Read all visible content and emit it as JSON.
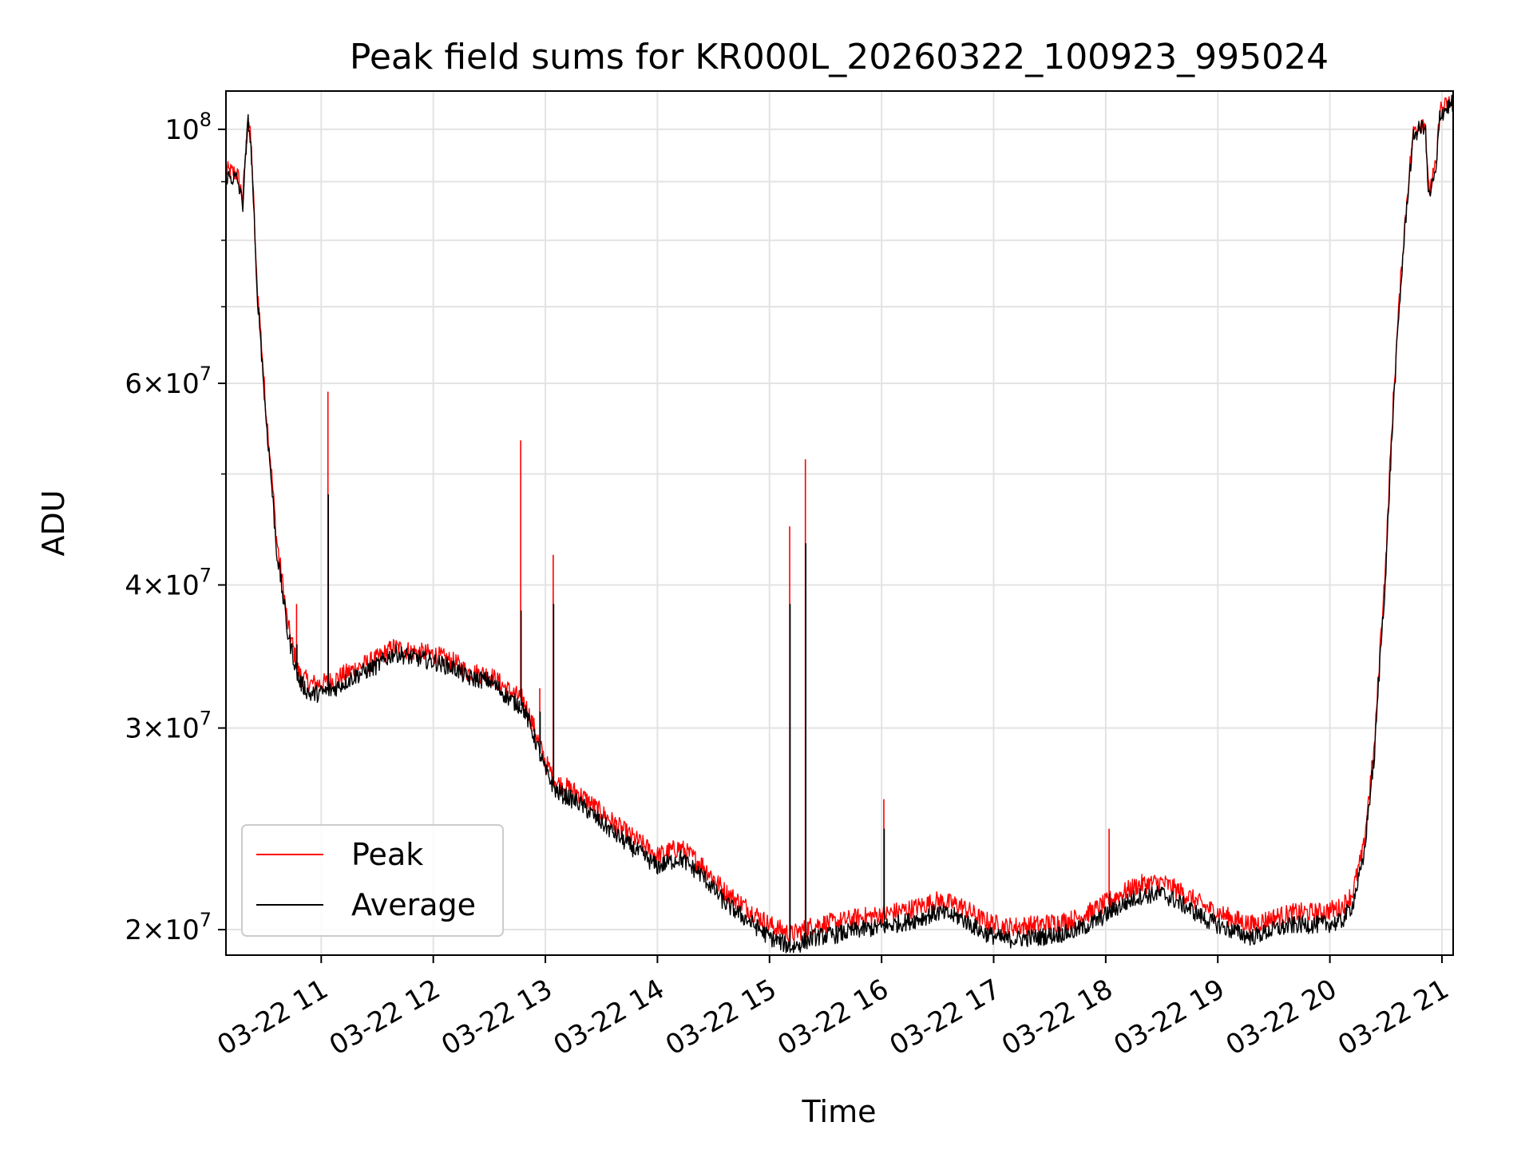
{
  "chart_data": {
    "type": "line",
    "title": "Peak field sums for KR000L_20260322_100923_995024",
    "xlabel": "Time",
    "ylabel": "ADU",
    "yscale": "log",
    "xlim": [
      10.15,
      21.1
    ],
    "ylim": [
      19000000,
      108000000
    ],
    "grid": true,
    "legend_position": "lower-left",
    "x_ticks": [
      {
        "value": 11,
        "label": "03-22 11"
      },
      {
        "value": 12,
        "label": "03-22 12"
      },
      {
        "value": 13,
        "label": "03-22 13"
      },
      {
        "value": 14,
        "label": "03-22 14"
      },
      {
        "value": 15,
        "label": "03-22 15"
      },
      {
        "value": 16,
        "label": "03-22 16"
      },
      {
        "value": 17,
        "label": "03-22 17"
      },
      {
        "value": 18,
        "label": "03-22 18"
      },
      {
        "value": 19,
        "label": "03-22 19"
      },
      {
        "value": 20,
        "label": "03-22 20"
      },
      {
        "value": 21,
        "label": "03-22 21"
      }
    ],
    "y_ticks": [
      {
        "value": 20000000,
        "mant": "2",
        "exp": "7"
      },
      {
        "value": 30000000,
        "mant": "3",
        "exp": "7"
      },
      {
        "value": 40000000,
        "mant": "4",
        "exp": "7"
      },
      {
        "value": 60000000,
        "mant": "6",
        "exp": "7"
      },
      {
        "value": 100000000,
        "mant": "",
        "exp": "8"
      }
    ],
    "y_minor_ticks": [
      50000000,
      70000000,
      80000000,
      90000000
    ],
    "series": [
      {
        "name": "Peak",
        "color": "#ff0000",
        "points": [
          [
            10.15,
            92000000
          ],
          [
            10.25,
            91500000
          ],
          [
            10.3,
            87000000
          ],
          [
            10.35,
            103000000
          ],
          [
            10.38,
            95000000
          ],
          [
            10.42,
            75000000
          ],
          [
            10.5,
            58000000
          ],
          [
            10.6,
            44000000
          ],
          [
            10.7,
            37000000
          ],
          [
            10.8,
            33500000
          ],
          [
            10.9,
            32800000
          ],
          [
            11.0,
            32800000
          ],
          [
            11.1,
            33000000
          ],
          [
            11.3,
            33800000
          ],
          [
            11.5,
            34500000
          ],
          [
            11.65,
            35300000
          ],
          [
            11.8,
            35000000
          ],
          [
            12.0,
            34800000
          ],
          [
            12.2,
            34200000
          ],
          [
            12.3,
            33600000
          ],
          [
            12.5,
            33400000
          ],
          [
            12.7,
            32200000
          ],
          [
            12.8,
            31800000
          ],
          [
            12.9,
            30000000
          ],
          [
            13.0,
            28000000
          ],
          [
            13.1,
            26900000
          ],
          [
            13.3,
            26300000
          ],
          [
            13.5,
            25300000
          ],
          [
            13.7,
            24400000
          ],
          [
            13.9,
            23600000
          ],
          [
            14.0,
            23200000
          ],
          [
            14.1,
            23400000
          ],
          [
            14.2,
            23600000
          ],
          [
            14.4,
            22800000
          ],
          [
            14.6,
            21600000
          ],
          [
            14.8,
            20900000
          ],
          [
            15.0,
            20200000
          ],
          [
            15.2,
            19800000
          ],
          [
            15.4,
            20200000
          ],
          [
            15.6,
            20300000
          ],
          [
            15.8,
            20500000
          ],
          [
            16.0,
            20600000
          ],
          [
            16.3,
            20900000
          ],
          [
            16.5,
            21200000
          ],
          [
            16.7,
            21000000
          ],
          [
            16.9,
            20400000
          ],
          [
            17.1,
            20100000
          ],
          [
            17.4,
            20200000
          ],
          [
            17.7,
            20400000
          ],
          [
            17.9,
            20800000
          ],
          [
            18.1,
            21400000
          ],
          [
            18.3,
            21900000
          ],
          [
            18.5,
            22000000
          ],
          [
            18.7,
            21500000
          ],
          [
            18.9,
            20900000
          ],
          [
            19.1,
            20500000
          ],
          [
            19.3,
            20200000
          ],
          [
            19.5,
            20500000
          ],
          [
            19.7,
            20700000
          ],
          [
            19.9,
            20700000
          ],
          [
            20.1,
            20900000
          ],
          [
            20.2,
            21500000
          ],
          [
            20.3,
            23500000
          ],
          [
            20.4,
            29000000
          ],
          [
            20.5,
            42000000
          ],
          [
            20.6,
            66000000
          ],
          [
            20.7,
            90000000
          ],
          [
            20.75,
            100000000
          ],
          [
            20.85,
            102000000
          ],
          [
            20.88,
            88000000
          ],
          [
            20.95,
            93000000
          ],
          [
            20.98,
            104000000
          ],
          [
            21.05,
            105000000
          ],
          [
            21.1,
            106000000
          ]
        ]
      },
      {
        "name": "Average",
        "color": "#000000",
        "points": [
          [
            10.15,
            91000000
          ],
          [
            10.25,
            90500000
          ],
          [
            10.3,
            86000000
          ],
          [
            10.35,
            102500000
          ],
          [
            10.38,
            94000000
          ],
          [
            10.42,
            74000000
          ],
          [
            10.5,
            57000000
          ],
          [
            10.6,
            43000000
          ],
          [
            10.7,
            36300000
          ],
          [
            10.8,
            33000000
          ],
          [
            10.9,
            32100000
          ],
          [
            11.0,
            32200000
          ],
          [
            11.1,
            32400000
          ],
          [
            11.3,
            33300000
          ],
          [
            11.5,
            34000000
          ],
          [
            11.65,
            34900000
          ],
          [
            11.8,
            34600000
          ],
          [
            12.0,
            34300000
          ],
          [
            12.2,
            33800000
          ],
          [
            12.3,
            33200000
          ],
          [
            12.5,
            33000000
          ],
          [
            12.7,
            31700000
          ],
          [
            12.8,
            31300000
          ],
          [
            12.9,
            29500000
          ],
          [
            13.0,
            27500000
          ],
          [
            13.1,
            26400000
          ],
          [
            13.3,
            25800000
          ],
          [
            13.5,
            24800000
          ],
          [
            13.7,
            23900000
          ],
          [
            13.9,
            23100000
          ],
          [
            14.0,
            22700000
          ],
          [
            14.1,
            22900000
          ],
          [
            14.2,
            23100000
          ],
          [
            14.4,
            22300000
          ],
          [
            14.6,
            21100000
          ],
          [
            14.8,
            20400000
          ],
          [
            15.0,
            19700000
          ],
          [
            15.2,
            19300000
          ],
          [
            15.4,
            19700000
          ],
          [
            15.6,
            19800000
          ],
          [
            15.8,
            20000000
          ],
          [
            16.0,
            20100000
          ],
          [
            16.3,
            20400000
          ],
          [
            16.5,
            20700000
          ],
          [
            16.7,
            20500000
          ],
          [
            16.9,
            19900000
          ],
          [
            17.1,
            19600000
          ],
          [
            17.4,
            19700000
          ],
          [
            17.7,
            19900000
          ],
          [
            17.9,
            20300000
          ],
          [
            18.1,
            20900000
          ],
          [
            18.3,
            21400000
          ],
          [
            18.5,
            21500000
          ],
          [
            18.7,
            21000000
          ],
          [
            18.9,
            20400000
          ],
          [
            19.1,
            20000000
          ],
          [
            19.3,
            19700000
          ],
          [
            19.5,
            20000000
          ],
          [
            19.7,
            20200000
          ],
          [
            19.9,
            20200000
          ],
          [
            20.1,
            20300000
          ],
          [
            20.2,
            21000000
          ],
          [
            20.3,
            23000000
          ],
          [
            20.4,
            28500000
          ],
          [
            20.5,
            41000000
          ],
          [
            20.6,
            65000000
          ],
          [
            20.7,
            89000000
          ],
          [
            20.75,
            99000000
          ],
          [
            20.85,
            101000000
          ],
          [
            20.88,
            87000000
          ],
          [
            20.95,
            92000000
          ],
          [
            20.98,
            103000000
          ],
          [
            21.05,
            104500000
          ],
          [
            21.1,
            105500000
          ]
        ]
      }
    ],
    "spikes": [
      {
        "x": 10.78,
        "peak": 38500000,
        "average": 35500000
      },
      {
        "x": 11.06,
        "peak": 59000000,
        "average": 48000000
      },
      {
        "x": 12.78,
        "peak": 53500000,
        "average": 38000000
      },
      {
        "x": 12.95,
        "peak": 32500000,
        "average": 31000000
      },
      {
        "x": 13.07,
        "peak": 42500000,
        "average": 38500000
      },
      {
        "x": 15.18,
        "peak": 45000000,
        "average": 38500000
      },
      {
        "x": 15.32,
        "peak": 51500000,
        "average": 43500000
      },
      {
        "x": 16.02,
        "peak": 26000000,
        "average": 24500000
      },
      {
        "x": 18.03,
        "peak": 24500000,
        "average": 21500000
      }
    ]
  }
}
